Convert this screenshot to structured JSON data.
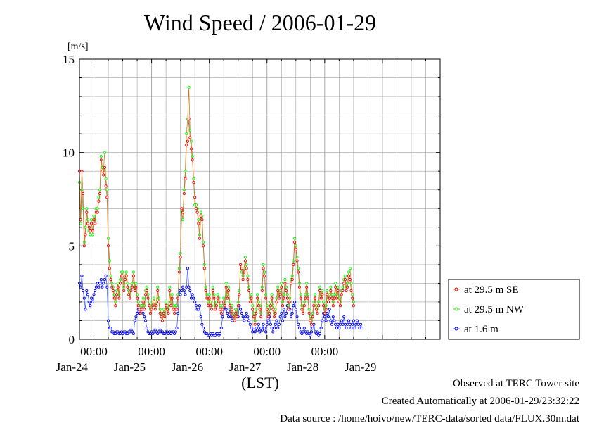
{
  "chart_data": {
    "type": "line",
    "title": "Wind Speed / 2006-01-29",
    "ylabel": "[m/s]",
    "xlabel": "(LST)",
    "ylim": [
      0,
      15
    ],
    "y_ticks": [
      0,
      5,
      10,
      15
    ],
    "xlim": [
      "2006-01-23T18:00",
      "2006-01-29T24:00"
    ],
    "x_tick_labels": [
      "00:00",
      "00:00",
      "00:00",
      "00:00",
      "00:00"
    ],
    "x_date_labels": [
      "Jan-24",
      "Jan-25",
      "Jan-26",
      "Jan-27",
      "Jan-28",
      "Jan-29"
    ],
    "sampling_interval_minutes": 30,
    "grid": true,
    "legend_position": "right",
    "series": [
      {
        "name": "at 29.5 m SE",
        "color": "#ff0000",
        "values": [
          9.0,
          6.4,
          9.0,
          7.8,
          5.0,
          5.6,
          6.8,
          6.2,
          6.0,
          5.8,
          6.2,
          5.8,
          6.4,
          6.2,
          6.8,
          6.8,
          7.4,
          7.8,
          9.6,
          9.0,
          8.8,
          9.2,
          8.2,
          7.6,
          5.0,
          3.8,
          3.2,
          2.8,
          2.6,
          2.2,
          1.8,
          2.4,
          2.8,
          2.2,
          3.0,
          3.4,
          3.4,
          2.6,
          3.2,
          3.4,
          2.8,
          2.4,
          2.2,
          2.6,
          2.8,
          3.4,
          2.6,
          2.8,
          2.2,
          1.8,
          1.6,
          1.4,
          1.6,
          2.0,
          1.6,
          2.4,
          2.6,
          2.2,
          1.8,
          1.4,
          1.6,
          1.8,
          2.0,
          1.6,
          1.8,
          2.6,
          2.0,
          1.4,
          1.2,
          1.0,
          1.4,
          1.2,
          1.8,
          1.6,
          1.4,
          2.6,
          1.8,
          2.2,
          1.6,
          1.4,
          1.6,
          1.6,
          2.2,
          3.6,
          4.4,
          7.0,
          6.8,
          7.8,
          8.6,
          10.4,
          10.6,
          11.8,
          10.8,
          10.2,
          9.6,
          8.4,
          7.6,
          7.0,
          6.8,
          6.2,
          5.4,
          6.6,
          6.4,
          5.0,
          3.8,
          2.6,
          2.2,
          1.8,
          2.2,
          1.8,
          1.6,
          2.6,
          2.2,
          1.6,
          1.8,
          2.2,
          2.0,
          1.6,
          1.4,
          1.6,
          2.0,
          1.8,
          2.8,
          2.2,
          2.6,
          1.8,
          1.4,
          1.6,
          1.2,
          1.0,
          1.4,
          1.2,
          1.8,
          2.4,
          4.0,
          3.8,
          3.2,
          3.6,
          4.2,
          3.8,
          3.2,
          2.6,
          2.0,
          2.2,
          1.6,
          1.2,
          0.8,
          1.4,
          2.2,
          1.8,
          1.6,
          1.2,
          2.6,
          3.8,
          3.4,
          2.2,
          1.6,
          1.2,
          1.4,
          1.8,
          2.2,
          1.6,
          1.2,
          1.4,
          2.0,
          2.6,
          2.2,
          2.4,
          2.8,
          1.8,
          2.2,
          3.0,
          2.6,
          2.2,
          1.6,
          2.0,
          3.0,
          3.2,
          4.0,
          5.2,
          4.8,
          4.2,
          3.6,
          2.8,
          2.2,
          1.6,
          1.4,
          1.8,
          2.2,
          2.8,
          2.2,
          1.4,
          1.0,
          0.8,
          1.2,
          1.8,
          2.2,
          1.6,
          1.4,
          1.8,
          2.6,
          2.2,
          2.4,
          1.8,
          1.4,
          1.6,
          2.4,
          2.0,
          2.2,
          2.6,
          2.2,
          1.8,
          2.2,
          2.8,
          2.2,
          2.6,
          2.0,
          1.8,
          2.4,
          2.6,
          3.0,
          3.2,
          2.6,
          2.8,
          3.4,
          3.2,
          2.6,
          2.2,
          1.8
        ],
        "marker": "circle"
      },
      {
        "name": "at 29.5 m NW",
        "color": "#00ff00",
        "values": [
          8.4,
          6.2,
          8.0,
          7.0,
          5.2,
          6.0,
          7.0,
          6.4,
          5.8,
          5.6,
          6.4,
          5.6,
          6.6,
          6.4,
          7.0,
          7.0,
          7.6,
          8.0,
          9.8,
          9.2,
          9.0,
          10.0,
          8.6,
          8.0,
          5.4,
          4.2,
          3.4,
          3.0,
          2.8,
          2.4,
          2.0,
          2.6,
          3.0,
          2.4,
          3.2,
          3.6,
          3.6,
          2.8,
          3.4,
          3.6,
          3.0,
          2.6,
          2.4,
          2.8,
          3.0,
          3.6,
          2.8,
          3.0,
          2.4,
          2.0,
          1.8,
          1.6,
          1.8,
          2.2,
          1.8,
          2.6,
          2.8,
          2.4,
          2.0,
          1.6,
          1.8,
          2.0,
          2.2,
          1.8,
          2.0,
          2.8,
          2.2,
          1.6,
          1.4,
          1.2,
          1.6,
          1.4,
          2.0,
          1.8,
          1.6,
          2.8,
          2.0,
          2.4,
          1.8,
          1.6,
          1.8,
          1.8,
          2.4,
          3.8,
          4.6,
          6.8,
          6.4,
          8.0,
          9.0,
          11.0,
          11.8,
          13.5,
          11.2,
          10.6,
          9.8,
          8.6,
          7.2,
          7.2,
          7.0,
          6.4,
          5.6,
          6.8,
          6.6,
          5.2,
          4.0,
          2.8,
          2.4,
          2.0,
          2.4,
          2.0,
          1.8,
          2.8,
          2.4,
          1.8,
          2.0,
          2.4,
          2.2,
          1.8,
          1.6,
          1.8,
          2.2,
          2.0,
          3.0,
          2.4,
          2.8,
          2.0,
          1.6,
          1.8,
          1.4,
          1.2,
          1.6,
          1.4,
          2.0,
          2.6,
          4.0,
          3.6,
          3.4,
          3.8,
          4.4,
          4.0,
          3.4,
          2.8,
          2.2,
          2.4,
          1.8,
          1.4,
          1.0,
          1.6,
          2.4,
          2.0,
          1.8,
          1.4,
          2.8,
          4.0,
          3.6,
          2.4,
          1.8,
          1.4,
          1.6,
          2.0,
          2.4,
          1.8,
          1.4,
          1.6,
          2.2,
          2.8,
          2.4,
          2.6,
          3.0,
          2.0,
          2.4,
          3.2,
          2.8,
          2.4,
          1.8,
          2.2,
          3.2,
          3.4,
          4.2,
          5.4,
          5.0,
          4.4,
          3.8,
          3.0,
          2.4,
          1.8,
          1.6,
          2.0,
          2.4,
          3.0,
          2.4,
          1.6,
          1.2,
          1.0,
          1.4,
          2.0,
          2.4,
          1.8,
          1.6,
          2.0,
          2.8,
          2.4,
          2.6,
          2.0,
          1.6,
          1.8,
          2.6,
          2.2,
          2.4,
          2.8,
          2.4,
          2.0,
          2.4,
          3.0,
          2.4,
          2.8,
          2.2,
          2.0,
          2.6,
          2.8,
          3.2,
          3.4,
          2.8,
          3.0,
          3.6,
          3.8,
          3.0,
          2.4,
          2.0
        ],
        "marker": "circle"
      },
      {
        "name": "at 1.6 m",
        "color": "#0000ff",
        "values": [
          3.0,
          2.8,
          3.4,
          2.6,
          2.2,
          1.6,
          2.6,
          2.4,
          2.0,
          1.8,
          2.2,
          2.0,
          2.4,
          2.6,
          2.8,
          3.0,
          2.8,
          3.0,
          3.2,
          2.8,
          3.0,
          3.2,
          3.4,
          2.8,
          1.0,
          0.6,
          0.6,
          0.4,
          0.4,
          0.3,
          0.3,
          0.4,
          0.4,
          0.3,
          0.3,
          0.4,
          0.3,
          0.4,
          0.4,
          0.3,
          0.3,
          0.4,
          0.4,
          0.5,
          0.4,
          0.3,
          1.0,
          1.2,
          1.4,
          1.6,
          1.4,
          1.6,
          1.8,
          1.4,
          1.2,
          1.0,
          0.6,
          0.4,
          0.3,
          0.3,
          0.4,
          0.3,
          0.4,
          0.5,
          0.4,
          0.3,
          0.4,
          0.5,
          0.4,
          0.4,
          0.3,
          0.3,
          0.4,
          0.4,
          0.3,
          0.4,
          0.3,
          0.4,
          0.4,
          0.3,
          0.4,
          0.6,
          1.4,
          2.6,
          2.4,
          2.6,
          2.8,
          2.6,
          2.4,
          2.8,
          3.8,
          2.8,
          2.6,
          2.2,
          2.4,
          2.2,
          2.0,
          1.8,
          1.6,
          1.6,
          1.8,
          1.2,
          0.8,
          0.6,
          0.4,
          0.3,
          0.3,
          0.2,
          0.2,
          0.3,
          0.2,
          0.3,
          0.2,
          0.2,
          0.3,
          0.3,
          0.2,
          0.3,
          0.6,
          1.2,
          1.6,
          1.8,
          1.6,
          1.4,
          1.2,
          1.6,
          1.2,
          1.0,
          1.4,
          1.2,
          1.6,
          1.4,
          1.2,
          1.8,
          1.6,
          1.4,
          1.2,
          1.0,
          1.2,
          1.4,
          1.2,
          1.0,
          0.8,
          0.6,
          0.4,
          0.5,
          0.4,
          0.6,
          0.5,
          0.8,
          0.4,
          0.6,
          0.5,
          0.8,
          0.6,
          0.4,
          0.8,
          1.0,
          1.2,
          0.8,
          0.6,
          0.4,
          0.6,
          0.8,
          1.0,
          0.6,
          0.8,
          1.2,
          1.4,
          1.0,
          1.6,
          1.2,
          1.4,
          1.8,
          2.0,
          1.6,
          1.2,
          1.4,
          1.8,
          2.0,
          1.6,
          1.2,
          0.8,
          0.6,
          0.4,
          0.3,
          0.4,
          0.6,
          0.4,
          0.3,
          0.4,
          0.3,
          0.2,
          0.4,
          0.6,
          0.8,
          0.4,
          0.3,
          0.4,
          0.2,
          0.3,
          0.6,
          1.0,
          1.4,
          1.2,
          1.0,
          1.4,
          1.2,
          1.6,
          1.0,
          0.8,
          1.2,
          1.0,
          0.8,
          0.6,
          0.8,
          0.6,
          0.8,
          1.0,
          0.8,
          1.2,
          0.8,
          0.6,
          0.8,
          1.0,
          0.8,
          0.6,
          0.8,
          1.0,
          0.6,
          0.8,
          1.0,
          0.8,
          0.6,
          0.8,
          0.6
        ]
      }
    ]
  },
  "footer": {
    "line1": "Observed at TERC Tower site",
    "line2": "Created Automatically at 2006-01-29/23:32:22",
    "line3": "Data source : /home/hoivo/new/TERC-data/sorted  data/FLUX.30m.dat"
  }
}
